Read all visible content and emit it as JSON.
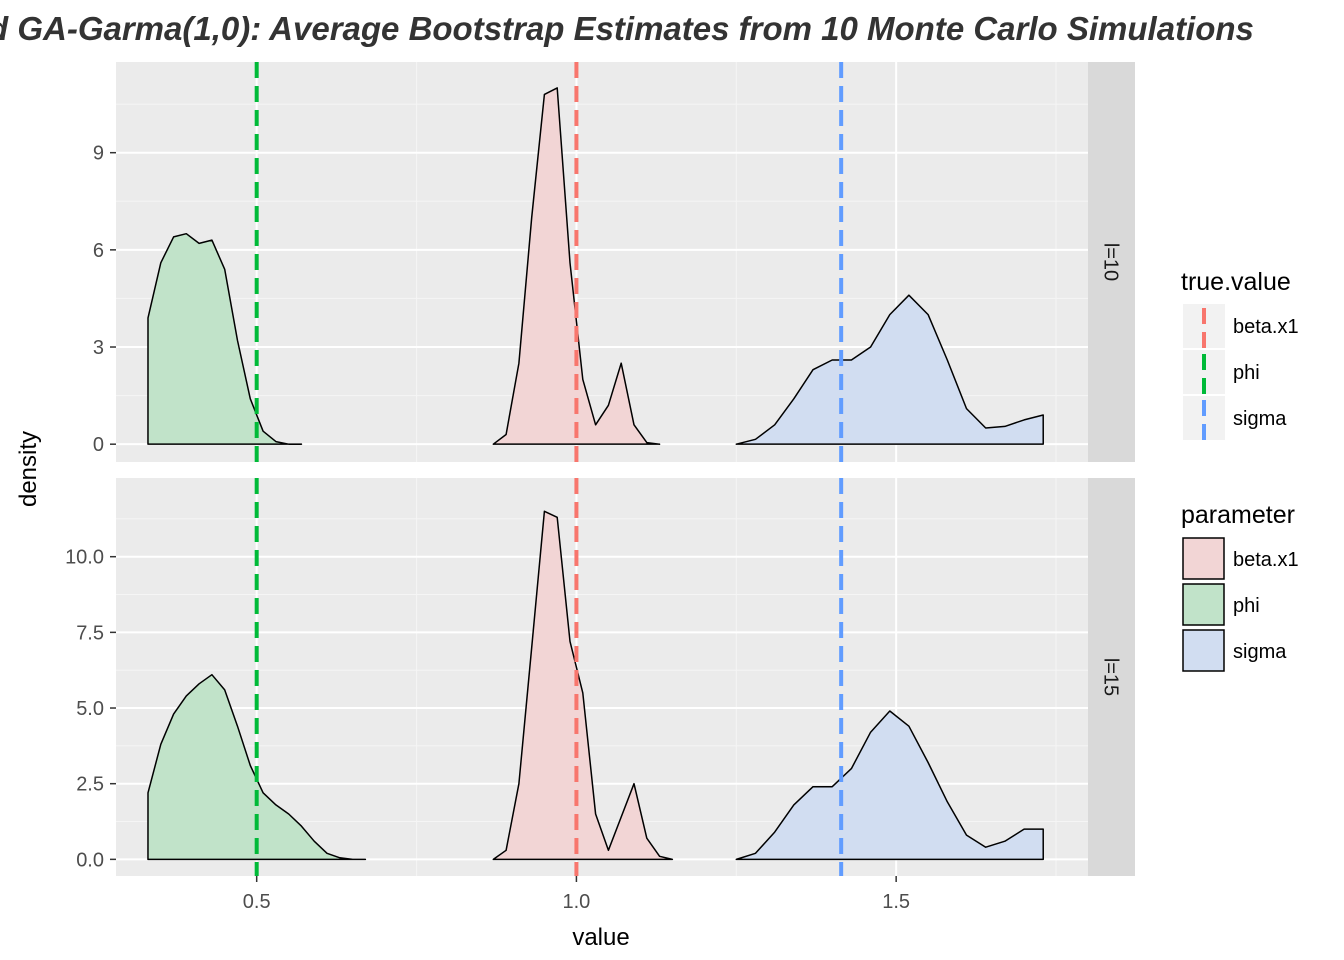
{
  "chart_data": {
    "type": "area",
    "title": "d GA-Garma(1,0):   Average Bootstrap Estimates from  10 Monte Carlo Simulations",
    "xlabel": "value",
    "ylabel": "density",
    "xlim": [
      0.28,
      1.8
    ],
    "x_ticks": [
      0.5,
      1.0,
      1.5
    ],
    "x_tick_labels": [
      "0.5",
      "1.0",
      "1.5"
    ],
    "grid": true,
    "colors": {
      "beta.x1": "#F8766D",
      "phi": "#00BA38",
      "sigma": "#619CFF"
    },
    "fill_colors": {
      "beta.x1": "#F2D5D5",
      "phi": "#C1E3C9",
      "sigma": "#D1DDF1"
    },
    "panels": [
      {
        "label": "l=10",
        "ylim": [
          -0.55,
          11.8
        ],
        "y_ticks": [
          0,
          3,
          6,
          9
        ],
        "y_tick_labels": [
          "0",
          "3",
          "6",
          "9"
        ],
        "vlines": [
          {
            "parameter": "phi",
            "x": 0.5
          },
          {
            "parameter": "beta.x1",
            "x": 1.0
          },
          {
            "parameter": "sigma",
            "x": 1.414
          }
        ],
        "series": [
          {
            "name": "phi",
            "x": [
              0.33,
              0.35,
              0.37,
              0.39,
              0.41,
              0.43,
              0.45,
              0.47,
              0.49,
              0.51,
              0.53,
              0.55,
              0.57
            ],
            "y": [
              3.9,
              5.6,
              6.4,
              6.5,
              6.2,
              6.3,
              5.4,
              3.2,
              1.4,
              0.4,
              0.08,
              0.0,
              0.0
            ]
          },
          {
            "name": "beta.x1",
            "x": [
              0.87,
              0.89,
              0.91,
              0.93,
              0.95,
              0.97,
              0.99,
              1.01,
              1.03,
              1.05,
              1.07,
              1.09,
              1.11,
              1.13
            ],
            "y": [
              0.0,
              0.3,
              2.5,
              7.0,
              10.8,
              11.0,
              5.6,
              2.0,
              0.6,
              1.2,
              2.5,
              0.6,
              0.05,
              0.0
            ]
          },
          {
            "name": "sigma",
            "x": [
              1.25,
              1.28,
              1.31,
              1.34,
              1.37,
              1.4,
              1.43,
              1.46,
              1.49,
              1.52,
              1.55,
              1.58,
              1.61,
              1.64,
              1.67,
              1.7,
              1.73
            ],
            "y": [
              0.0,
              0.15,
              0.6,
              1.4,
              2.3,
              2.6,
              2.6,
              3.0,
              4.0,
              4.6,
              4.0,
              2.6,
              1.1,
              0.5,
              0.55,
              0.75,
              0.9
            ]
          }
        ]
      },
      {
        "label": "l=15",
        "ylim": [
          -0.55,
          12.6
        ],
        "y_ticks": [
          0,
          2.5,
          5,
          7.5,
          10
        ],
        "y_tick_labels": [
          "0.0",
          "2.5",
          "5.0",
          "7.5",
          "10.0"
        ],
        "vlines": [
          {
            "parameter": "phi",
            "x": 0.5
          },
          {
            "parameter": "beta.x1",
            "x": 1.0
          },
          {
            "parameter": "sigma",
            "x": 1.414
          }
        ],
        "series": [
          {
            "name": "phi",
            "x": [
              0.33,
              0.35,
              0.37,
              0.39,
              0.41,
              0.43,
              0.45,
              0.47,
              0.49,
              0.51,
              0.53,
              0.55,
              0.57,
              0.59,
              0.61,
              0.63,
              0.65,
              0.67
            ],
            "y": [
              2.2,
              3.8,
              4.8,
              5.4,
              5.8,
              6.1,
              5.6,
              4.4,
              3.1,
              2.2,
              1.8,
              1.5,
              1.1,
              0.6,
              0.2,
              0.05,
              0.0,
              0.0
            ]
          },
          {
            "name": "beta.x1",
            "x": [
              0.87,
              0.89,
              0.91,
              0.93,
              0.95,
              0.97,
              0.99,
              1.01,
              1.03,
              1.05,
              1.07,
              1.09,
              1.11,
              1.13,
              1.15
            ],
            "y": [
              0.0,
              0.3,
              2.5,
              7.0,
              11.5,
              11.3,
              7.2,
              5.5,
              1.5,
              0.3,
              1.4,
              2.5,
              0.7,
              0.1,
              0.0
            ]
          },
          {
            "name": "sigma",
            "x": [
              1.25,
              1.28,
              1.31,
              1.34,
              1.37,
              1.4,
              1.43,
              1.46,
              1.49,
              1.52,
              1.55,
              1.58,
              1.61,
              1.64,
              1.67,
              1.7,
              1.73
            ],
            "y": [
              0.0,
              0.2,
              0.9,
              1.8,
              2.4,
              2.4,
              3.0,
              4.2,
              4.9,
              4.4,
              3.2,
              1.9,
              0.8,
              0.4,
              0.6,
              1.0,
              1.0
            ]
          }
        ]
      }
    ],
    "legends": [
      {
        "title": "true.value",
        "style": "dashed-line",
        "entries": [
          "beta.x1",
          "phi",
          "sigma"
        ]
      },
      {
        "title": "parameter",
        "style": "fill",
        "entries": [
          "beta.x1",
          "phi",
          "sigma"
        ]
      }
    ],
    "legend_position": "right"
  }
}
